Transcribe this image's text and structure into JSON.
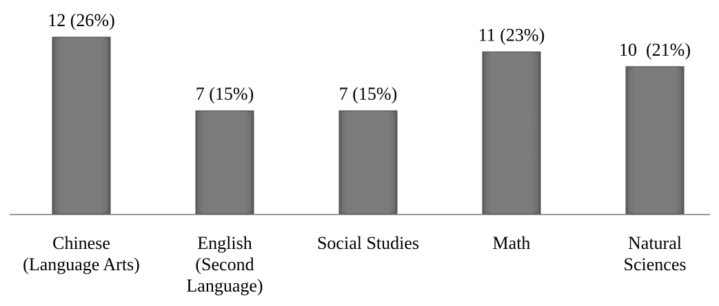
{
  "chart_data": {
    "type": "bar",
    "categories": [
      "Chinese\n(Language Arts)",
      "English\n(Second\nLanguage)",
      "Social Studies",
      "Math",
      "Natural\nSciences"
    ],
    "values": [
      12,
      7,
      7,
      11,
      10
    ],
    "value_labels": [
      "12 (26%)",
      "7 (15%)",
      "7 (15%)",
      "11 (23%)",
      "10  (21%)"
    ],
    "color": "#7a7a7a"
  }
}
